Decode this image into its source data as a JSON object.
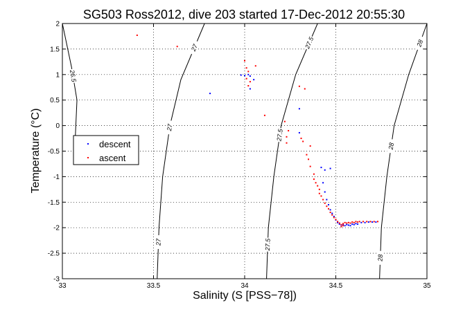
{
  "chart_data": {
    "type": "scatter",
    "title": "SG503 Ross2012, dive 203 started 17-Dec-2012 20:55:30",
    "xlabel": "Salinity (S [PSS−78])",
    "ylabel": "Temperature (°C)",
    "xlim": [
      33,
      35
    ],
    "ylim": [
      -3,
      2
    ],
    "xticks": [
      "33",
      "33.5",
      "34",
      "34.5",
      "35"
    ],
    "yticks": [
      "-3",
      "-2.5",
      "-2",
      "-1.5",
      "-1",
      "-0.5",
      "0",
      "0.5",
      "1",
      "1.5",
      "2"
    ],
    "grid": true,
    "legend_position": "left",
    "series": [
      {
        "name": "descent",
        "color": "#0000ff",
        "points": [
          [
            33.81,
            0.63
          ],
          [
            33.98,
            0.99
          ],
          [
            34.0,
            0.98
          ],
          [
            34.02,
            1.0
          ],
          [
            34.03,
            0.97
          ],
          [
            34.05,
            0.9
          ],
          [
            34.03,
            0.72
          ],
          [
            34.3,
            0.33
          ],
          [
            34.3,
            -0.14
          ],
          [
            34.42,
            -0.82
          ],
          [
            34.44,
            -0.87
          ],
          [
            34.47,
            -0.84
          ],
          [
            34.43,
            -1.12
          ],
          [
            34.44,
            -1.3
          ],
          [
            34.45,
            -1.45
          ],
          [
            34.46,
            -1.55
          ],
          [
            34.47,
            -1.65
          ],
          [
            34.48,
            -1.72
          ],
          [
            34.49,
            -1.78
          ],
          [
            34.5,
            -1.85
          ],
          [
            34.51,
            -1.9
          ],
          [
            34.52,
            -1.93
          ],
          [
            34.53,
            -1.95
          ],
          [
            34.54,
            -1.94
          ],
          [
            34.55,
            -1.96
          ],
          [
            34.56,
            -1.94
          ],
          [
            34.57,
            -1.95
          ],
          [
            34.58,
            -1.96
          ],
          [
            34.59,
            -1.93
          ],
          [
            34.6,
            -1.94
          ],
          [
            34.61,
            -1.92
          ],
          [
            34.62,
            -1.93
          ],
          [
            34.64,
            -1.9
          ],
          [
            34.66,
            -1.9
          ],
          [
            34.68,
            -1.89
          ],
          [
            34.7,
            -1.89
          ],
          [
            34.72,
            -1.89
          ]
        ]
      },
      {
        "name": "ascent",
        "color": "#ff0000",
        "points": [
          [
            33.41,
            1.77
          ],
          [
            33.63,
            1.55
          ],
          [
            34.0,
            1.27
          ],
          [
            34.01,
            1.13
          ],
          [
            34.02,
            1.06
          ],
          [
            34.01,
            0.92
          ],
          [
            34.02,
            0.78
          ],
          [
            34.03,
            0.86
          ],
          [
            34.06,
            1.17
          ],
          [
            34.11,
            0.2
          ],
          [
            34.22,
            0.08
          ],
          [
            34.23,
            -0.22
          ],
          [
            34.23,
            -0.34
          ],
          [
            34.24,
            -0.1
          ],
          [
            34.3,
            0.77
          ],
          [
            34.33,
            0.72
          ],
          [
            34.31,
            -0.25
          ],
          [
            34.32,
            -0.31
          ],
          [
            34.34,
            -0.57
          ],
          [
            34.35,
            -0.66
          ],
          [
            34.36,
            -0.4
          ],
          [
            34.36,
            -0.8
          ],
          [
            34.38,
            -0.95
          ],
          [
            34.38,
            -1.05
          ],
          [
            34.39,
            -1.12
          ],
          [
            34.4,
            -1.18
          ],
          [
            34.41,
            -1.25
          ],
          [
            34.41,
            -1.33
          ],
          [
            34.42,
            -1.38
          ],
          [
            34.43,
            -1.45
          ],
          [
            34.44,
            -1.52
          ],
          [
            34.45,
            -1.58
          ],
          [
            34.46,
            -1.63
          ],
          [
            34.47,
            -1.7
          ],
          [
            34.48,
            -1.75
          ],
          [
            34.49,
            -1.8
          ],
          [
            34.5,
            -1.84
          ],
          [
            34.51,
            -1.88
          ],
          [
            34.52,
            -1.91
          ],
          [
            34.53,
            -1.94
          ],
          [
            34.54,
            -1.92
          ],
          [
            34.55,
            -1.9
          ],
          [
            34.56,
            -1.91
          ],
          [
            34.57,
            -1.9
          ],
          [
            34.58,
            -1.91
          ],
          [
            34.59,
            -1.89
          ],
          [
            34.6,
            -1.9
          ],
          [
            34.61,
            -1.88
          ],
          [
            34.62,
            -1.89
          ],
          [
            34.63,
            -1.88
          ],
          [
            34.65,
            -1.88
          ],
          [
            34.67,
            -1.88
          ],
          [
            34.69,
            -1.88
          ],
          [
            34.71,
            -1.88
          ],
          [
            34.73,
            -1.88
          ],
          [
            34.53,
            -1.98
          ],
          [
            34.54,
            -1.96
          ]
        ]
      }
    ],
    "contours": [
      {
        "label": "26.5",
        "points": [
          [
            33.0,
            2.0
          ],
          [
            33.05,
            1.15
          ],
          [
            33.08,
            0.5
          ],
          [
            33.07,
            -0.3
          ]
        ],
        "tick_label_t": 0.45
      },
      {
        "label": "27",
        "points": [
          [
            33.78,
            2.0
          ],
          [
            33.65,
            0.9
          ],
          [
            33.59,
            0.0
          ],
          [
            33.55,
            -1.0
          ],
          [
            33.53,
            -2.0
          ],
          [
            33.52,
            -3.0
          ]
        ],
        "tick_label_t": 0.1
      },
      {
        "label": "27",
        "points": [
          [
            33.78,
            2.0
          ],
          [
            33.65,
            0.9
          ],
          [
            33.59,
            0.0
          ],
          [
            33.55,
            -1.0
          ],
          [
            33.53,
            -2.0
          ],
          [
            33.52,
            -3.0
          ]
        ],
        "tick_label_t": 0.42
      },
      {
        "label": "27",
        "points": [
          [
            33.78,
            2.0
          ],
          [
            33.65,
            0.9
          ],
          [
            33.59,
            0.0
          ],
          [
            33.55,
            -1.0
          ],
          [
            33.53,
            -2.0
          ],
          [
            33.52,
            -3.0
          ]
        ],
        "tick_label_t": 0.86
      },
      {
        "label": "27.5",
        "points": [
          [
            34.4,
            2.0
          ],
          [
            34.28,
            1.0
          ],
          [
            34.2,
            0.0
          ],
          [
            34.16,
            -1.0
          ],
          [
            34.13,
            -2.0
          ],
          [
            34.12,
            -3.0
          ]
        ],
        "tick_label_t": 0.08
      },
      {
        "label": "27.5",
        "points": [
          [
            34.4,
            2.0
          ],
          [
            34.28,
            1.0
          ],
          [
            34.2,
            0.0
          ],
          [
            34.16,
            -1.0
          ],
          [
            34.13,
            -2.0
          ],
          [
            34.12,
            -3.0
          ]
        ],
        "tick_label_t": 0.45
      },
      {
        "label": "27.5",
        "points": [
          [
            34.4,
            2.0
          ],
          [
            34.28,
            1.0
          ],
          [
            34.2,
            0.0
          ],
          [
            34.16,
            -1.0
          ],
          [
            34.13,
            -2.0
          ],
          [
            34.12,
            -3.0
          ]
        ],
        "tick_label_t": 0.87
      },
      {
        "label": "28",
        "points": [
          [
            35.0,
            2.0
          ],
          [
            34.9,
            1.0
          ],
          [
            34.82,
            0.0
          ],
          [
            34.78,
            -1.0
          ],
          [
            34.75,
            -2.0
          ],
          [
            34.74,
            -3.0
          ]
        ],
        "tick_label_t": 0.08
      },
      {
        "label": "28",
        "points": [
          [
            35.0,
            2.0
          ],
          [
            34.9,
            1.0
          ],
          [
            34.82,
            0.0
          ],
          [
            34.78,
            -1.0
          ],
          [
            34.75,
            -2.0
          ],
          [
            34.74,
            -3.0
          ]
        ],
        "tick_label_t": 0.49
      },
      {
        "label": "28",
        "points": [
          [
            35.0,
            2.0
          ],
          [
            34.9,
            1.0
          ],
          [
            34.82,
            0.0
          ],
          [
            34.78,
            -1.0
          ],
          [
            34.75,
            -2.0
          ],
          [
            34.74,
            -3.0
          ]
        ],
        "tick_label_t": 0.92
      }
    ]
  }
}
